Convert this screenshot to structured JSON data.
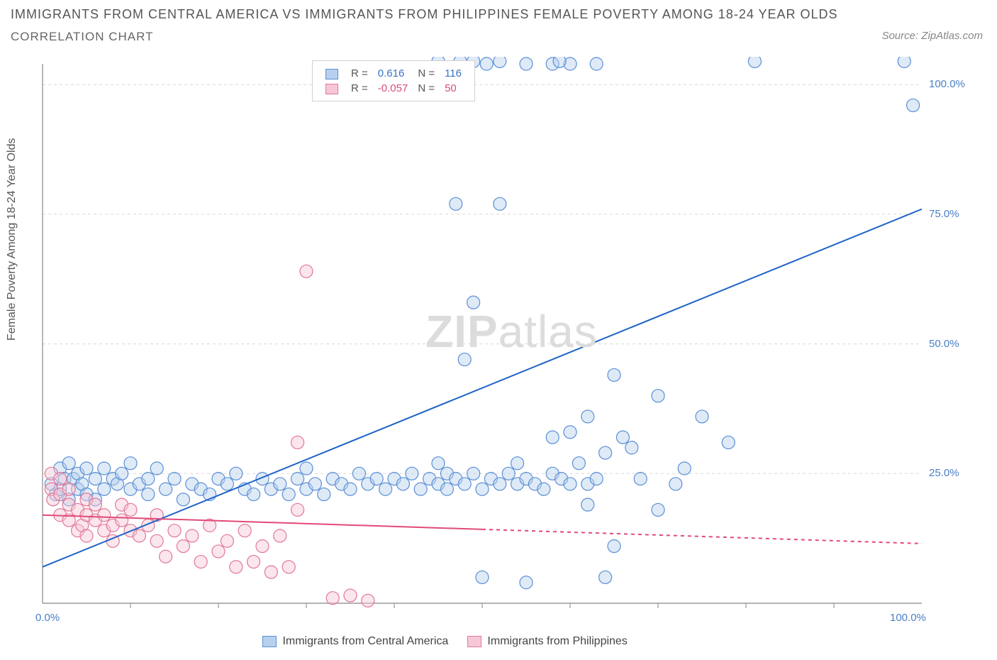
{
  "header": {
    "title_line1": "IMMIGRANTS FROM CENTRAL AMERICA VS IMMIGRANTS FROM PHILIPPINES FEMALE POVERTY AMONG 18-24 YEAR OLDS",
    "title_line2": "CORRELATION CHART",
    "source_label": "Source: ZipAtlas.com"
  },
  "axes": {
    "ylabel": "Female Poverty Among 18-24 Year Olds",
    "xlim": [
      0,
      100
    ],
    "ylim": [
      0,
      104
    ],
    "ytick_values": [
      25,
      50,
      75,
      100
    ],
    "ytick_labels": [
      "25.0%",
      "50.0%",
      "75.0%",
      "100.0%"
    ],
    "xtick_values": [
      0,
      100
    ],
    "xtick_minor": [
      10,
      20,
      30,
      40,
      50,
      60,
      70,
      80,
      90
    ],
    "xtick_labels": [
      "0.0%",
      "100.0%"
    ],
    "grid_color": "#d8d8d8",
    "axis_color": "#888888",
    "tick_label_color": "#4a7fc4",
    "background_color": "#ffffff"
  },
  "legend_top": {
    "r_label": "R =",
    "n_label": "N =",
    "series": [
      {
        "r": "0.616",
        "n": "116",
        "swatch_fill": "#b8d0ee",
        "swatch_stroke": "#5a8fd6",
        "text_color": "#3a72c2"
      },
      {
        "r": "-0.057",
        "n": "50",
        "swatch_fill": "#f6c8d7",
        "swatch_stroke": "#e27797",
        "text_color": "#d94f78"
      }
    ]
  },
  "legend_bottom": {
    "items": [
      {
        "label": "Immigrants from Central America",
        "swatch_fill": "#b8d0ee",
        "swatch_stroke": "#5a8fd6"
      },
      {
        "label": "Immigrants from Philippines",
        "swatch_fill": "#f6c8d7",
        "swatch_stroke": "#e27797"
      }
    ]
  },
  "watermark": {
    "part1": "ZIP",
    "part2": "atlas"
  },
  "styling": {
    "marker_radius": 9,
    "marker_fill_opacity": 0.45,
    "marker_stroke_width": 1.2,
    "trend_line_width": 2,
    "trend_dash_extrapolate": "5,5"
  },
  "series": [
    {
      "name": "Immigrants from Central America",
      "color_fill": "#b8d0ee",
      "color_stroke": "#5a8fd6",
      "trend_color": "#1d63c7",
      "trend": {
        "x1": 0,
        "y1": 7,
        "x2": 100,
        "y2": 76,
        "solid_until_x": 100
      },
      "points": [
        [
          1,
          23
        ],
        [
          1.5,
          21
        ],
        [
          2,
          26
        ],
        [
          2,
          22
        ],
        [
          2.5,
          24
        ],
        [
          3,
          20
        ],
        [
          3,
          27
        ],
        [
          3.5,
          24
        ],
        [
          4,
          22
        ],
        [
          4,
          25
        ],
        [
          4.5,
          23
        ],
        [
          5,
          21
        ],
        [
          5,
          26
        ],
        [
          6,
          24
        ],
        [
          6,
          20
        ],
        [
          7,
          22
        ],
        [
          7,
          26
        ],
        [
          8,
          24
        ],
        [
          8.5,
          23
        ],
        [
          9,
          25
        ],
        [
          10,
          22
        ],
        [
          10,
          27
        ],
        [
          11,
          23
        ],
        [
          12,
          21
        ],
        [
          12,
          24
        ],
        [
          13,
          26
        ],
        [
          14,
          22
        ],
        [
          15,
          24
        ],
        [
          16,
          20
        ],
        [
          17,
          23
        ],
        [
          18,
          22
        ],
        [
          19,
          21
        ],
        [
          20,
          24
        ],
        [
          21,
          23
        ],
        [
          22,
          25
        ],
        [
          23,
          22
        ],
        [
          24,
          21
        ],
        [
          25,
          24
        ],
        [
          26,
          22
        ],
        [
          27,
          23
        ],
        [
          28,
          21
        ],
        [
          29,
          24
        ],
        [
          30,
          22
        ],
        [
          30,
          26
        ],
        [
          31,
          23
        ],
        [
          32,
          21
        ],
        [
          33,
          24
        ],
        [
          34,
          23
        ],
        [
          35,
          22
        ],
        [
          36,
          25
        ],
        [
          37,
          23
        ],
        [
          38,
          24
        ],
        [
          39,
          22
        ],
        [
          40,
          24
        ],
        [
          41,
          23
        ],
        [
          42,
          25
        ],
        [
          43,
          22
        ],
        [
          44,
          24
        ],
        [
          45,
          23
        ],
        [
          46,
          25
        ],
        [
          45,
          27
        ],
        [
          46,
          22
        ],
        [
          47,
          24
        ],
        [
          48,
          23
        ],
        [
          49,
          25
        ],
        [
          47,
          77
        ],
        [
          49,
          58
        ],
        [
          50,
          5
        ],
        [
          50,
          22
        ],
        [
          51,
          24
        ],
        [
          52,
          23
        ],
        [
          48,
          47
        ],
        [
          53,
          25
        ],
        [
          54,
          23
        ],
        [
          54,
          27
        ],
        [
          55,
          24
        ],
        [
          52,
          77
        ],
        [
          56,
          23
        ],
        [
          57,
          22
        ],
        [
          58,
          25
        ],
        [
          58,
          32
        ],
        [
          59,
          24
        ],
        [
          55,
          4
        ],
        [
          60,
          23
        ],
        [
          60,
          33
        ],
        [
          62,
          23
        ],
        [
          62,
          19
        ],
        [
          64,
          29
        ],
        [
          65,
          44
        ],
        [
          66,
          32
        ],
        [
          62,
          36
        ],
        [
          61,
          27
        ],
        [
          65,
          11
        ],
        [
          63,
          24
        ],
        [
          68,
          24
        ],
        [
          64,
          5
        ],
        [
          63,
          104
        ],
        [
          67,
          30
        ],
        [
          58,
          104
        ],
        [
          60,
          104
        ],
        [
          58.8,
          104.5
        ],
        [
          70,
          40
        ],
        [
          75,
          36
        ],
        [
          78,
          31
        ],
        [
          81,
          104.5
        ],
        [
          98,
          104.5
        ],
        [
          99,
          96
        ],
        [
          70,
          18
        ],
        [
          72,
          23
        ],
        [
          55,
          104
        ],
        [
          52,
          104.5
        ],
        [
          49,
          104.5
        ],
        [
          50.5,
          104
        ],
        [
          47.5,
          104.5
        ],
        [
          45,
          104.5
        ],
        [
          73,
          26
        ]
      ]
    },
    {
      "name": "Immigrants from Philippines",
      "color_fill": "#f6c8d7",
      "color_stroke": "#e27797",
      "trend_color": "#e24a77",
      "trend": {
        "x1": 0,
        "y1": 17,
        "x2": 100,
        "y2": 11.5,
        "solid_until_x": 50
      },
      "points": [
        [
          1,
          22
        ],
        [
          1,
          25
        ],
        [
          1.2,
          20
        ],
        [
          2,
          21
        ],
        [
          2,
          17
        ],
        [
          2,
          24
        ],
        [
          3,
          19
        ],
        [
          3,
          16
        ],
        [
          3,
          22
        ],
        [
          4,
          14
        ],
        [
          4,
          18
        ],
        [
          4.5,
          15
        ],
        [
          5,
          17
        ],
        [
          5,
          13
        ],
        [
          5,
          20
        ],
        [
          6,
          16
        ],
        [
          6,
          19
        ],
        [
          7,
          14
        ],
        [
          7,
          17
        ],
        [
          8,
          15
        ],
        [
          8,
          12
        ],
        [
          9,
          16
        ],
        [
          9,
          19
        ],
        [
          10,
          14
        ],
        [
          10,
          18
        ],
        [
          11,
          13
        ],
        [
          12,
          15
        ],
        [
          13,
          12
        ],
        [
          13,
          17
        ],
        [
          14,
          9
        ],
        [
          15,
          14
        ],
        [
          16,
          11
        ],
        [
          17,
          13
        ],
        [
          18,
          8
        ],
        [
          19,
          15
        ],
        [
          20,
          10
        ],
        [
          21,
          12
        ],
        [
          22,
          7
        ],
        [
          23,
          14
        ],
        [
          24,
          8
        ],
        [
          25,
          11
        ],
        [
          26,
          6
        ],
        [
          27,
          13
        ],
        [
          28,
          7
        ],
        [
          29,
          18
        ],
        [
          29,
          31
        ],
        [
          33,
          1
        ],
        [
          35,
          1.5
        ],
        [
          37,
          0.5
        ],
        [
          30,
          64
        ]
      ]
    }
  ]
}
